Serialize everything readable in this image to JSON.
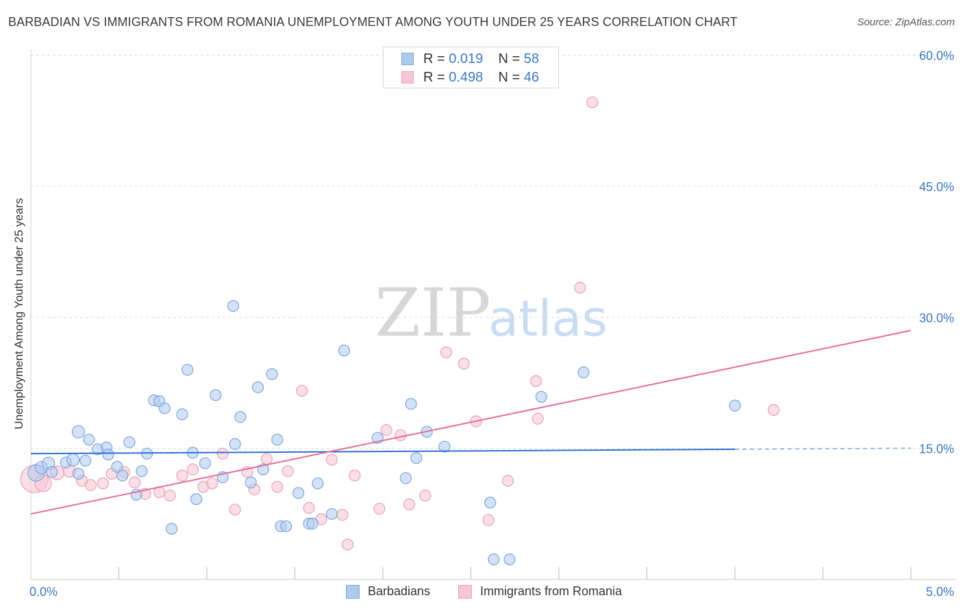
{
  "header": {
    "title": "BARBADIAN VS IMMIGRANTS FROM ROMANIA UNEMPLOYMENT AMONG YOUTH UNDER 25 YEARS CORRELATION CHART",
    "source": "Source: ZipAtlas.com"
  },
  "watermark": {
    "zip": "ZIP",
    "atlas": "atlas"
  },
  "legend": {
    "rows": [
      {
        "r_label": "R =",
        "r_value": "0.019",
        "n_label": "N =",
        "n_value": "58"
      },
      {
        "r_label": "R =",
        "r_value": "0.498",
        "n_label": "N =",
        "n_value": "46"
      }
    ]
  },
  "colors": {
    "blue_fill": "#aecbef",
    "blue_stroke": "#7aa6dc",
    "blue_line": "#2d6fd0",
    "pink_fill": "#f7c5d4",
    "pink_stroke": "#e9a0b6",
    "pink_line": "#e56c98",
    "tick_text": "#3a78c8",
    "grid": "#dcdcdc"
  },
  "chart_data": {
    "type": "scatter",
    "title": "BARBADIAN VS IMMIGRANTS FROM ROMANIA UNEMPLOYMENT AMONG YOUTH UNDER 25 YEARS CORRELATION CHART",
    "xlabel": "",
    "ylabel": "Unemployment Among Youth under 25 years",
    "xlim": [
      0,
      5
    ],
    "ylim": [
      0,
      63
    ],
    "x_tick_labels": [
      "0.0%",
      "5.0%"
    ],
    "y_ticks": [
      15,
      30,
      45,
      60
    ],
    "y_tick_labels": [
      "15.0%",
      "30.0%",
      "45.0%",
      "60.0%"
    ],
    "series": [
      {
        "name": "Barbadians",
        "R": 0.019,
        "N": 58,
        "trend": {
          "x": [
            0,
            4.0
          ],
          "y": [
            14.4,
            14.9
          ],
          "dashed_to": 5.0
        },
        "points": [
          [
            0.03,
            12.2,
            12
          ],
          [
            0.06,
            12.8,
            9
          ],
          [
            0.1,
            13.3,
            9
          ],
          [
            0.12,
            12.3,
            8
          ],
          [
            0.2,
            13.4,
            8
          ],
          [
            0.24,
            13.7,
            9
          ],
          [
            0.27,
            12.1,
            8
          ],
          [
            0.27,
            16.9,
            9
          ],
          [
            0.31,
            13.6,
            8
          ],
          [
            0.33,
            16.0,
            8
          ],
          [
            0.38,
            14.9,
            8
          ],
          [
            0.43,
            15.1,
            8
          ],
          [
            0.44,
            14.3,
            8
          ],
          [
            0.49,
            12.9,
            8
          ],
          [
            0.52,
            11.9,
            8
          ],
          [
            0.56,
            15.7,
            8
          ],
          [
            0.6,
            9.7,
            8
          ],
          [
            0.63,
            12.4,
            8
          ],
          [
            0.66,
            14.4,
            8
          ],
          [
            0.7,
            20.5,
            8
          ],
          [
            0.73,
            20.4,
            8
          ],
          [
            0.76,
            19.6,
            8
          ],
          [
            0.8,
            5.8,
            8
          ],
          [
            0.86,
            18.9,
            8
          ],
          [
            0.89,
            24.0,
            8
          ],
          [
            0.92,
            14.5,
            8
          ],
          [
            0.94,
            9.2,
            8
          ],
          [
            0.99,
            13.3,
            8
          ],
          [
            1.05,
            21.1,
            8
          ],
          [
            1.09,
            11.7,
            8
          ],
          [
            1.15,
            31.3,
            8
          ],
          [
            1.16,
            15.5,
            8
          ],
          [
            1.19,
            18.6,
            8
          ],
          [
            1.25,
            11.1,
            8
          ],
          [
            1.29,
            22.0,
            8
          ],
          [
            1.32,
            12.6,
            8
          ],
          [
            1.37,
            23.5,
            8
          ],
          [
            1.4,
            16.0,
            8
          ],
          [
            1.42,
            6.1,
            8
          ],
          [
            1.45,
            6.1,
            8
          ],
          [
            1.52,
            9.9,
            8
          ],
          [
            1.58,
            6.4,
            8
          ],
          [
            1.6,
            6.4,
            8
          ],
          [
            1.63,
            11.0,
            8
          ],
          [
            1.71,
            7.5,
            8
          ],
          [
            1.78,
            26.2,
            8
          ],
          [
            1.97,
            16.2,
            8
          ],
          [
            2.13,
            11.6,
            8
          ],
          [
            2.16,
            20.1,
            8
          ],
          [
            2.19,
            13.9,
            8
          ],
          [
            2.25,
            16.9,
            8
          ],
          [
            2.35,
            15.2,
            8
          ],
          [
            2.61,
            8.8,
            8
          ],
          [
            2.63,
            2.3,
            8
          ],
          [
            2.72,
            2.3,
            8
          ],
          [
            2.9,
            20.9,
            8
          ],
          [
            3.14,
            23.7,
            8
          ],
          [
            4.0,
            19.9,
            8
          ]
        ]
      },
      {
        "name": "Immigrants from Romania",
        "R": 0.498,
        "N": 46,
        "trend": {
          "x": [
            0,
            5.0
          ],
          "y": [
            7.5,
            28.5
          ]
        },
        "points": [
          [
            0.02,
            11.5,
            20
          ],
          [
            0.07,
            11.0,
            12
          ],
          [
            0.15,
            12.2,
            10
          ],
          [
            0.22,
            12.4,
            9
          ],
          [
            0.29,
            11.3,
            8
          ],
          [
            0.34,
            10.8,
            8
          ],
          [
            0.41,
            11.0,
            8
          ],
          [
            0.46,
            12.1,
            8
          ],
          [
            0.53,
            12.3,
            8
          ],
          [
            0.59,
            11.1,
            8
          ],
          [
            0.65,
            9.8,
            8
          ],
          [
            0.73,
            10.0,
            8
          ],
          [
            0.79,
            9.6,
            8
          ],
          [
            0.86,
            11.9,
            8
          ],
          [
            0.92,
            12.6,
            8
          ],
          [
            0.98,
            10.6,
            8
          ],
          [
            1.03,
            11.0,
            8
          ],
          [
            1.09,
            14.4,
            8
          ],
          [
            1.16,
            8.0,
            8
          ],
          [
            1.23,
            12.3,
            8
          ],
          [
            1.27,
            10.3,
            8
          ],
          [
            1.34,
            13.8,
            8
          ],
          [
            1.4,
            10.6,
            8
          ],
          [
            1.46,
            12.4,
            8
          ],
          [
            1.54,
            21.6,
            8
          ],
          [
            1.58,
            8.2,
            8
          ],
          [
            1.65,
            6.9,
            8
          ],
          [
            1.71,
            13.7,
            8
          ],
          [
            1.77,
            7.4,
            8
          ],
          [
            1.8,
            4.0,
            8
          ],
          [
            1.84,
            11.9,
            8
          ],
          [
            1.98,
            8.1,
            8
          ],
          [
            2.02,
            17.1,
            8
          ],
          [
            2.1,
            16.5,
            8
          ],
          [
            2.15,
            8.6,
            8
          ],
          [
            2.24,
            9.6,
            8
          ],
          [
            2.36,
            26.0,
            8
          ],
          [
            2.46,
            24.7,
            8
          ],
          [
            2.53,
            18.1,
            8
          ],
          [
            2.6,
            6.8,
            8
          ],
          [
            2.71,
            11.3,
            8
          ],
          [
            2.87,
            22.7,
            8
          ],
          [
            2.88,
            18.4,
            8
          ],
          [
            3.12,
            33.4,
            8
          ],
          [
            3.19,
            54.6,
            8
          ],
          [
            4.22,
            19.4,
            8
          ]
        ]
      }
    ],
    "legend_position": "top-center"
  }
}
